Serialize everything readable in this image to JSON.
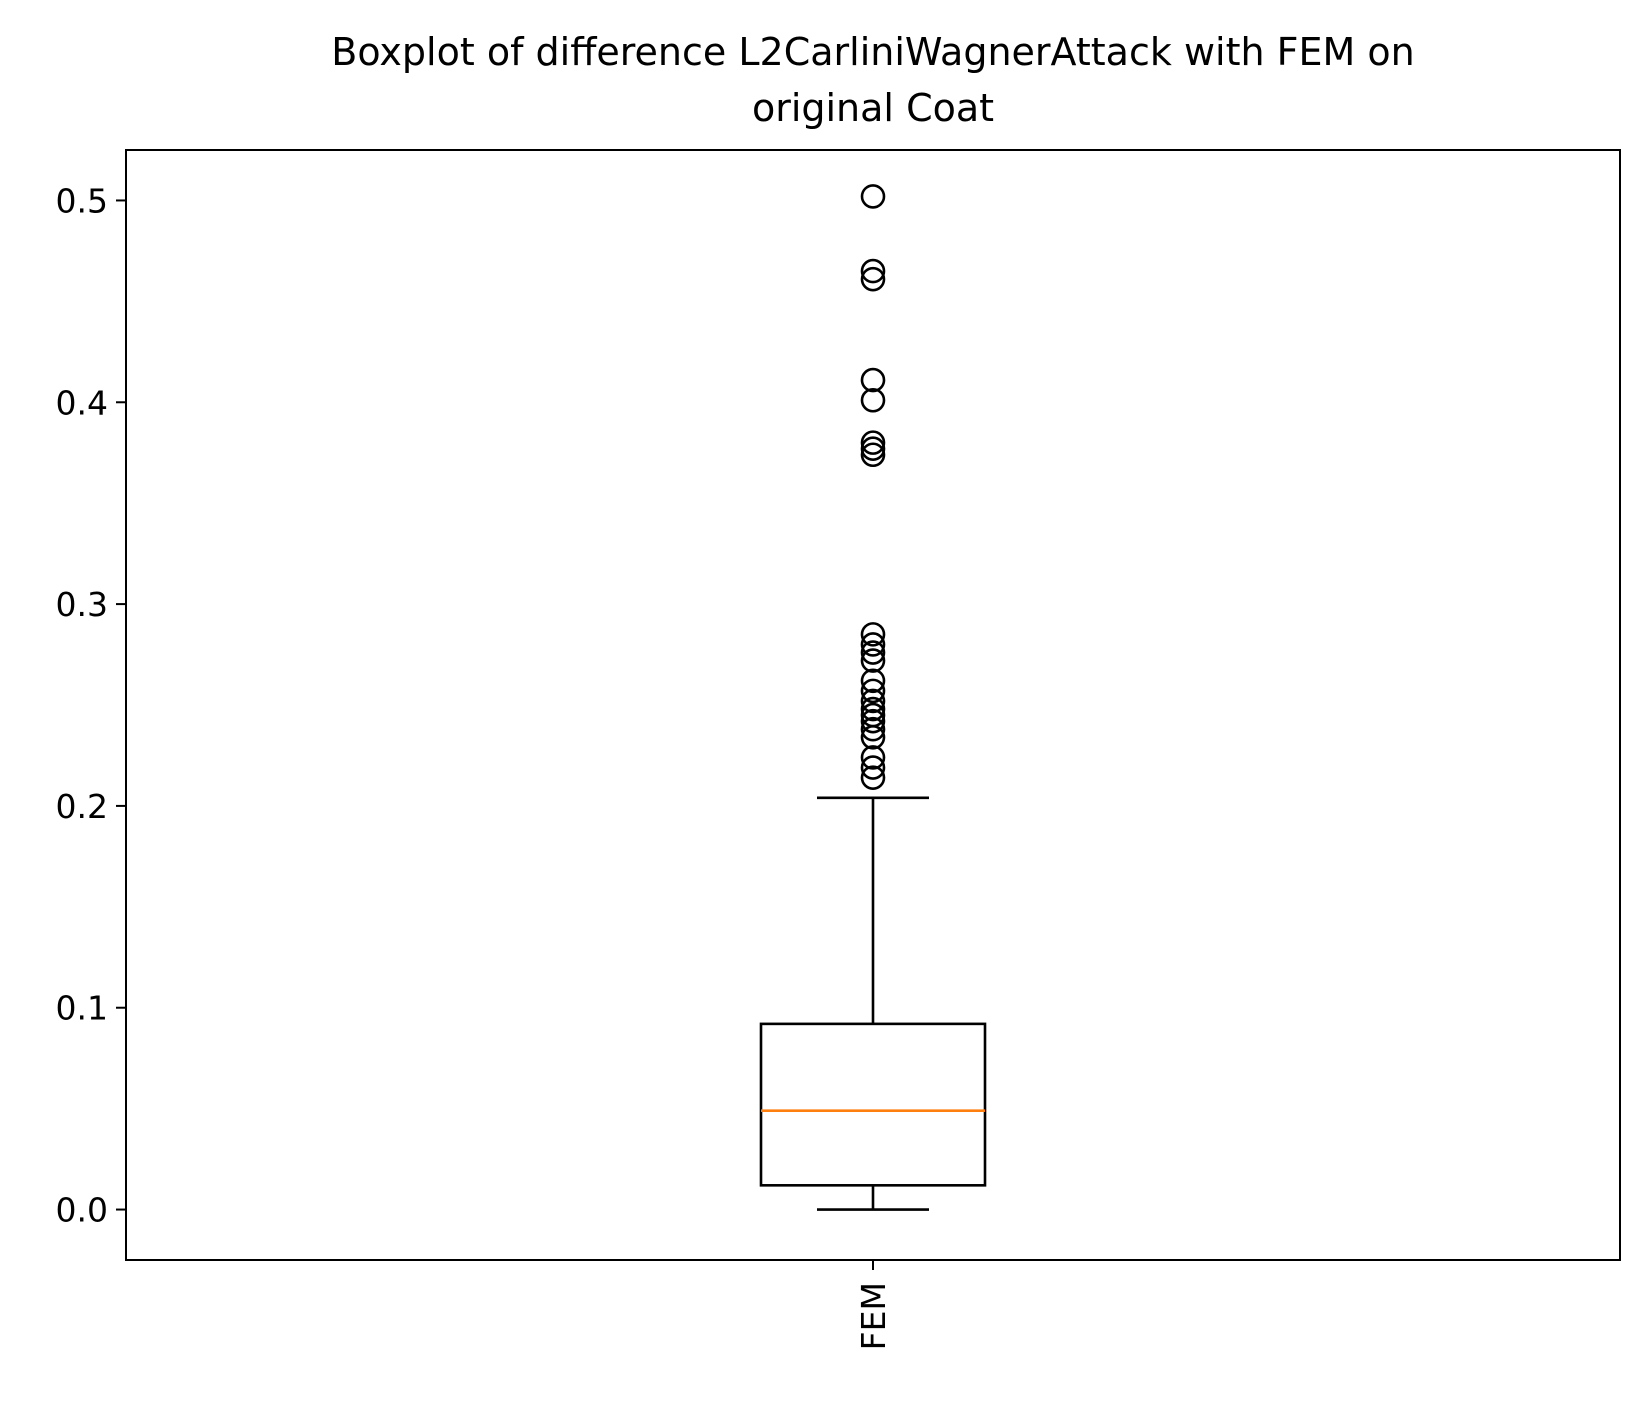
{
  "chart_data": {
    "type": "boxplot",
    "title_lines": [
      "Boxplot of difference L2CarliniWagnerAttack with FEM on",
      "original Coat"
    ],
    "xlabel": "",
    "ylabel": "",
    "ylim": [
      -0.025,
      0.525
    ],
    "yticks": [
      0.0,
      0.1,
      0.2,
      0.3,
      0.4,
      0.5
    ],
    "ytick_labels": [
      "0.0",
      "0.1",
      "0.2",
      "0.3",
      "0.4",
      "0.5"
    ],
    "categories": [
      "FEM"
    ],
    "x_tick_rotation": "vertical",
    "grid": false,
    "boxes": [
      {
        "label": "FEM",
        "whisker_low": 0.0,
        "q1": 0.012,
        "median": 0.049,
        "q3": 0.092,
        "whisker_high": 0.204,
        "outliers": [
          0.502,
          0.465,
          0.461,
          0.411,
          0.401,
          0.38,
          0.377,
          0.374,
          0.285,
          0.28,
          0.276,
          0.272,
          0.262,
          0.257,
          0.252,
          0.248,
          0.245,
          0.242,
          0.238,
          0.234,
          0.224,
          0.219,
          0.214
        ]
      }
    ],
    "colors": {
      "box": "#000000",
      "median": "#ff7f0e",
      "flier": "#000000"
    }
  }
}
